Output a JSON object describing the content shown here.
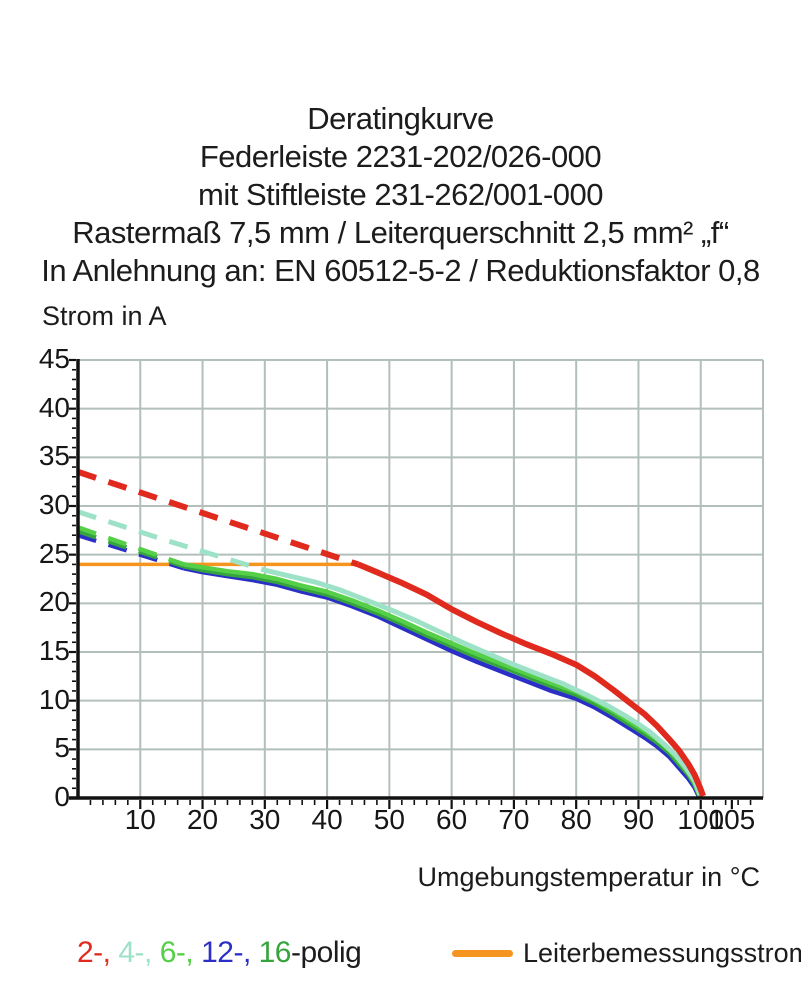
{
  "title": {
    "lines": [
      "Deratingkurve",
      "Federleiste 2231-202/026-000",
      "mit Stiftleiste 231-262/001-000",
      "Rastermaß 7,5 mm / Leiterquerschnitt 2,5 mm² „f“",
      "In Anlehnung an: EN 60512-5-2 / Reduktionsfaktor 0,8"
    ]
  },
  "chart": {
    "y_axis_label": "Strom in A",
    "x_axis_label": "Umgebungstemperatur in °C"
  },
  "chart_data": {
    "type": "line",
    "xlabel": "Umgebungstemperatur in °C",
    "ylabel": "Strom in A",
    "xlim": [
      0,
      110
    ],
    "ylim": [
      0,
      45
    ],
    "grid": true,
    "x_ticks": [
      10,
      20,
      30,
      40,
      50,
      60,
      70,
      80,
      90,
      100,
      105
    ],
    "y_ticks": [
      0,
      5,
      10,
      15,
      20,
      25,
      30,
      35,
      40,
      45
    ],
    "series": [
      {
        "name": "2-polig",
        "color": "#e02a1e",
        "dashed_points": [
          [
            0,
            33.5
          ],
          [
            45,
            24.0
          ]
        ],
        "solid_points": [
          [
            45,
            24
          ],
          [
            48,
            23.2
          ],
          [
            52,
            22.1
          ],
          [
            56,
            20.9
          ],
          [
            60,
            19.4
          ],
          [
            64,
            18.1
          ],
          [
            68,
            16.9
          ],
          [
            72,
            15.8
          ],
          [
            76,
            14.8
          ],
          [
            80,
            13.7
          ],
          [
            83,
            12.5
          ],
          [
            86,
            11.1
          ],
          [
            89,
            9.6
          ],
          [
            91,
            8.6
          ],
          [
            93,
            7.4
          ],
          [
            95,
            6.0
          ],
          [
            96.5,
            4.9
          ],
          [
            98,
            3.5
          ],
          [
            99,
            2.4
          ],
          [
            99.8,
            1.2
          ],
          [
            100.4,
            0.2
          ]
        ]
      },
      {
        "name": "4-polig",
        "color": "#9de2c6",
        "dashed_points": [
          [
            0,
            29.4
          ],
          [
            15,
            26.3
          ],
          [
            30,
            23.4
          ]
        ],
        "solid_points": [
          [
            30,
            23.4
          ],
          [
            34,
            22.8
          ],
          [
            38,
            22.2
          ],
          [
            42,
            21.4
          ],
          [
            46,
            20.4
          ],
          [
            50,
            19.4
          ],
          [
            54,
            18.3
          ],
          [
            58,
            17.1
          ],
          [
            62,
            15.9
          ],
          [
            66,
            14.8
          ],
          [
            70,
            13.7
          ],
          [
            74,
            12.7
          ],
          [
            78,
            11.7
          ],
          [
            82,
            10.5
          ],
          [
            85,
            9.5
          ],
          [
            88,
            8.4
          ],
          [
            90,
            7.6
          ],
          [
            92,
            6.7
          ],
          [
            94,
            5.6
          ],
          [
            96,
            4.4
          ],
          [
            97.5,
            3.2
          ],
          [
            99,
            1.8
          ],
          [
            99.9,
            0.3
          ]
        ]
      },
      {
        "name": "6-polig",
        "color": "#54cf47",
        "dashed_points": [
          [
            0,
            27.8
          ],
          [
            17,
            24.0
          ]
        ],
        "solid_points": [
          [
            17,
            24
          ],
          [
            20,
            23.7
          ],
          [
            24,
            23.3
          ],
          [
            28,
            23.0
          ],
          [
            32,
            22.5
          ],
          [
            36,
            21.8
          ],
          [
            40,
            21.2
          ],
          [
            44,
            20.3
          ],
          [
            48,
            19.3
          ],
          [
            52,
            18.2
          ],
          [
            56,
            17.0
          ],
          [
            60,
            15.9
          ],
          [
            64,
            14.8
          ],
          [
            68,
            13.8
          ],
          [
            72,
            12.8
          ],
          [
            76,
            11.8
          ],
          [
            80,
            10.9
          ],
          [
            83,
            10.0
          ],
          [
            86,
            8.9
          ],
          [
            89,
            7.7
          ],
          [
            91,
            6.9
          ],
          [
            93,
            6.0
          ],
          [
            95,
            4.9
          ],
          [
            96.5,
            3.8
          ],
          [
            98,
            2.6
          ],
          [
            99,
            1.6
          ],
          [
            99.8,
            0.3
          ]
        ]
      },
      {
        "name": "12-polig",
        "color": "#2b2fc6",
        "dashed_points": [
          [
            0,
            27.0
          ],
          [
            17,
            23.6
          ]
        ],
        "solid_points": [
          [
            17,
            23.6
          ],
          [
            20,
            23.2
          ],
          [
            24,
            22.8
          ],
          [
            28,
            22.4
          ],
          [
            32,
            21.9
          ],
          [
            36,
            21.2
          ],
          [
            40,
            20.6
          ],
          [
            44,
            19.7
          ],
          [
            48,
            18.7
          ],
          [
            52,
            17.5
          ],
          [
            56,
            16.3
          ],
          [
            60,
            15.1
          ],
          [
            64,
            14.0
          ],
          [
            68,
            13.0
          ],
          [
            72,
            12.0
          ],
          [
            76,
            11.0
          ],
          [
            80,
            10.2
          ],
          [
            83,
            9.3
          ],
          [
            86,
            8.2
          ],
          [
            89,
            7.0
          ],
          [
            91,
            6.2
          ],
          [
            93,
            5.3
          ],
          [
            95,
            4.2
          ],
          [
            96.5,
            3.1
          ],
          [
            98,
            2.0
          ],
          [
            99,
            1.1
          ],
          [
            99.7,
            0.15
          ]
        ]
      },
      {
        "name": "16-polig",
        "color": "#35a43c",
        "dashed_points": [
          [
            0,
            27.4
          ],
          [
            17,
            23.8
          ]
        ],
        "solid_points": [
          [
            17,
            23.8
          ],
          [
            20,
            23.4
          ],
          [
            24,
            23.0
          ],
          [
            28,
            22.7
          ],
          [
            32,
            22.2
          ],
          [
            36,
            21.5
          ],
          [
            40,
            20.9
          ],
          [
            44,
            20.0
          ],
          [
            48,
            19.0
          ],
          [
            52,
            17.9
          ],
          [
            56,
            16.7
          ],
          [
            60,
            15.6
          ],
          [
            64,
            14.5
          ],
          [
            68,
            13.5
          ],
          [
            72,
            12.5
          ],
          [
            76,
            11.5
          ],
          [
            80,
            10.6
          ],
          [
            83,
            9.7
          ],
          [
            86,
            8.6
          ],
          [
            89,
            7.4
          ],
          [
            91,
            6.6
          ],
          [
            93,
            5.7
          ],
          [
            95,
            4.6
          ],
          [
            96.5,
            3.5
          ],
          [
            98,
            2.4
          ],
          [
            99,
            1.4
          ],
          [
            99.8,
            0.2
          ]
        ]
      }
    ],
    "rated_current_line": {
      "name": "Leiterbemessungsstrom",
      "color": "#f5941f",
      "value": 24,
      "x_range": [
        0,
        44.5
      ]
    }
  },
  "legend": {
    "pole_items": [
      {
        "text": "2-, ",
        "color": "#e02a1e"
      },
      {
        "text": "4-, ",
        "color": "#9de2c6"
      },
      {
        "text": "6-, ",
        "color": "#54cf47"
      },
      {
        "text": "12-, ",
        "color": "#2b2fc6"
      },
      {
        "text": "16",
        "color": "#35a43c"
      },
      {
        "text": "-polig",
        "color": "#1c1c1c"
      }
    ],
    "rated_label": "Leiterbemessungsstrom",
    "rated_color": "#f5941f"
  },
  "colors": {
    "background": "#ffffff",
    "grid": "#b2bfbb",
    "axis": "#111111",
    "text": "#1c1c1c"
  }
}
